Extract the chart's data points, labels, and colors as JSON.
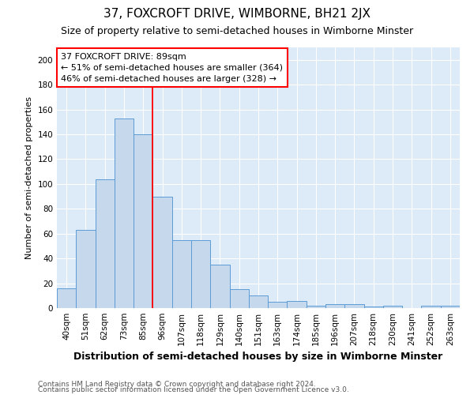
{
  "title": "37, FOXCROFT DRIVE, WIMBORNE, BH21 2JX",
  "subtitle": "Size of property relative to semi-detached houses in Wimborne Minster",
  "xlabel": "Distribution of semi-detached houses by size in Wimborne Minster",
  "ylabel": "Number of semi-detached properties",
  "footnote1": "Contains HM Land Registry data © Crown copyright and database right 2024.",
  "footnote2": "Contains public sector information licensed under the Open Government Licence v3.0.",
  "categories": [
    "40sqm",
    "51sqm",
    "62sqm",
    "73sqm",
    "85sqm",
    "96sqm",
    "107sqm",
    "118sqm",
    "129sqm",
    "140sqm",
    "151sqm",
    "163sqm",
    "174sqm",
    "185sqm",
    "196sqm",
    "207sqm",
    "218sqm",
    "230sqm",
    "241sqm",
    "252sqm",
    "263sqm"
  ],
  "values": [
    16,
    63,
    104,
    153,
    140,
    90,
    55,
    55,
    35,
    15,
    10,
    5,
    6,
    2,
    3,
    3,
    1,
    2,
    0,
    2,
    2
  ],
  "bar_color": "#c5d8ec",
  "bar_edge_color": "#5b9bd5",
  "background_color": "#ddeaf7",
  "annotation_line1": "37 FOXCROFT DRIVE: 89sqm",
  "annotation_line2": "← 51% of semi-detached houses are smaller (364)",
  "annotation_line3": "46% of semi-detached houses are larger (328) →",
  "redline_x": 4.5,
  "ylim": [
    0,
    210
  ],
  "yticks": [
    0,
    20,
    40,
    60,
    80,
    100,
    120,
    140,
    160,
    180,
    200
  ],
  "title_fontsize": 11,
  "subtitle_fontsize": 9,
  "xlabel_fontsize": 9,
  "ylabel_fontsize": 8,
  "tick_fontsize": 7.5,
  "annotation_fontsize": 8,
  "footnote_fontsize": 6.5
}
